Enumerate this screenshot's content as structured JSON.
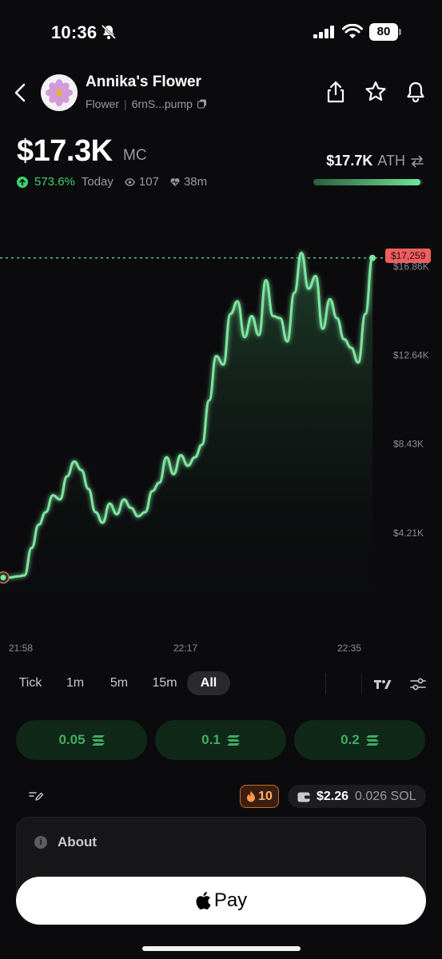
{
  "status_bar": {
    "time": "10:36",
    "battery": "80"
  },
  "header": {
    "token_name": "Annika's Flower",
    "ticker": "Flower",
    "address": "6rnS...pump"
  },
  "market": {
    "mc_value": "$17.3K",
    "mc_unit": "MC",
    "change_pct": "573.6%",
    "change_period": "Today",
    "watchers": "107",
    "age": "38m",
    "ath_value": "$17.7K",
    "ath_label": "ATH",
    "ath_progress": 0.98
  },
  "chart_data": {
    "type": "line",
    "x_ticks": [
      "21:58",
      "22:17",
      "22:35"
    ],
    "y_ticks": [
      "$16.86K",
      "$12.64K",
      "$8.43K",
      "$4.21K"
    ],
    "current_price_label": "$17,259",
    "current_price": 17259,
    "ylim": [
      0,
      18500
    ],
    "y_tick_values": [
      16860,
      12640,
      8430,
      4210
    ],
    "values": [
      2100,
      2100,
      2150,
      2200,
      3500,
      4600,
      5200,
      6000,
      5800,
      6900,
      7600,
      7200,
      6300,
      5200,
      4700,
      5600,
      5100,
      5800,
      5400,
      5000,
      5200,
      6200,
      6600,
      7800,
      7000,
      7900,
      7400,
      7800,
      8400,
      10500,
      12600,
      12200,
      14600,
      15200,
      13500,
      14500,
      13600,
      16200,
      14500,
      14400,
      13300,
      15600,
      17500,
      15800,
      16400,
      13900,
      15300,
      14400,
      13400,
      13000,
      12300,
      14600,
      17259
    ],
    "colors": {
      "line": "#7ee7a0",
      "price_line": "#6fe39a",
      "price_tag": "#ef5f5f"
    }
  },
  "timeframes": {
    "items": [
      "Tick",
      "1m",
      "5m",
      "15m",
      "All"
    ],
    "active": "All"
  },
  "quick_buy": [
    "0.05",
    "0.1",
    "0.2"
  ],
  "balance": {
    "fire_count": "10",
    "usd": "$2.26",
    "sol": "0.026 SOL"
  },
  "about": {
    "title": "About"
  },
  "pay": {
    "label": "Pay"
  },
  "icons": {
    "back": "chevron-left-icon",
    "share": "share-icon",
    "star": "star-icon",
    "bell": "bell-icon",
    "eye": "eye-icon",
    "heartbeat": "heartbeat-icon",
    "swap": "swap-icon",
    "chart_type": "tradingview-icon",
    "settings": "sliders-icon",
    "solana": "solana-icon",
    "edit": "edit-icon",
    "fire": "fire-icon",
    "wallet": "wallet-icon",
    "info": "info-icon",
    "apple": "apple-icon"
  }
}
